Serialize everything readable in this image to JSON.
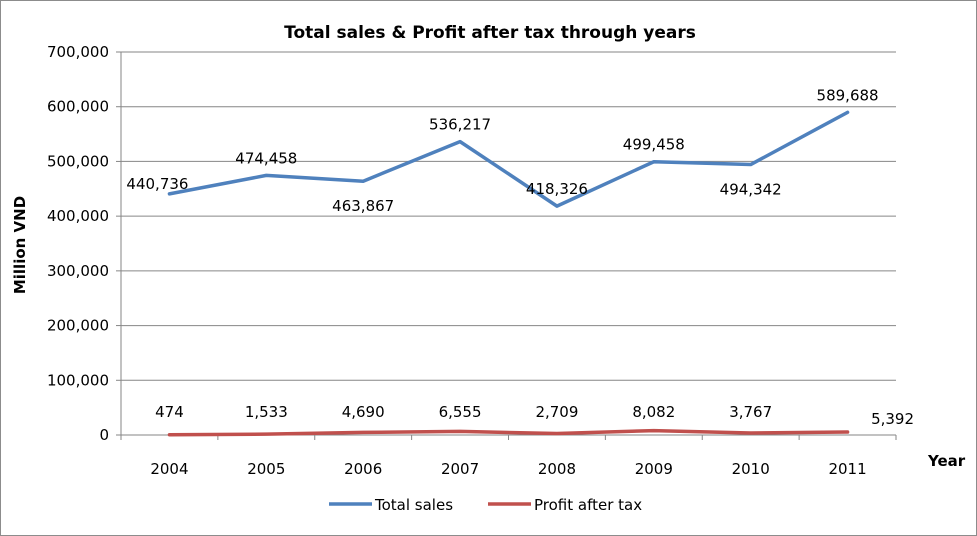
{
  "chart_data": {
    "type": "line",
    "title": "Total sales & Profit after tax through years",
    "xlabel": "Year",
    "ylabel": "Million VND",
    "categories": [
      "2004",
      "2005",
      "2006",
      "2007",
      "2008",
      "2009",
      "2010",
      "2011"
    ],
    "ylim": [
      0,
      700000
    ],
    "ytick_values": [
      0,
      100000,
      200000,
      300000,
      400000,
      500000,
      600000,
      700000
    ],
    "ytick_labels": [
      "0",
      "100,000",
      "200,000",
      "300,000",
      "400,000",
      "500,000",
      "600,000",
      "700,000"
    ],
    "grid": true,
    "legend_position": "bottom",
    "series": [
      {
        "name": "Total sales",
        "color": "#4f81bd",
        "values": [
          440736,
          474458,
          463867,
          536217,
          418326,
          499458,
          494342,
          589688
        ],
        "labels": [
          "440,736",
          "474,458",
          "463,867",
          "536,217",
          "418,326",
          "499,458",
          "494,342",
          "589,688"
        ],
        "label_positions": [
          "left",
          "above",
          "below",
          "above",
          "above",
          "above",
          "below",
          "above"
        ]
      },
      {
        "name": "Profit after tax",
        "color": "#c0504d",
        "values": [
          474,
          1533,
          4690,
          6555,
          2709,
          8082,
          3767,
          5392
        ],
        "labels": [
          "474",
          "1,533",
          "4,690",
          "6,555",
          "2,709",
          "8,082",
          "3,767",
          "5,392"
        ],
        "label_positions": [
          "above",
          "above",
          "above",
          "above",
          "above",
          "above",
          "above",
          "above-right"
        ]
      }
    ]
  }
}
